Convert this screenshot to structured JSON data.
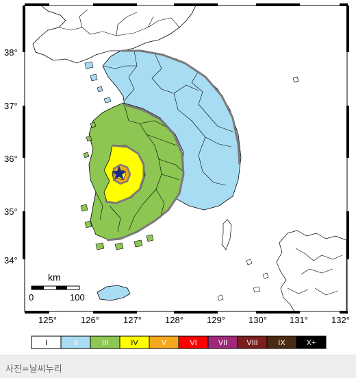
{
  "map": {
    "latitude_labels": [
      "38°",
      "37°",
      "36°",
      "35°",
      "34°"
    ],
    "longitude_labels": [
      "125°",
      "126°",
      "127°",
      "128°",
      "129°",
      "130°",
      "131°",
      "132°"
    ],
    "scale_bar": {
      "unit": "km",
      "start": "0",
      "end": "100"
    },
    "epicenter_icon": "star-icon",
    "colors": {
      "land": "#ffffff",
      "sea": "#ffffff",
      "intensity_II": "#a8dcf3",
      "intensity_III": "#8dc653",
      "intensity_IV": "#ffff00",
      "intensity_V": "#f4a81a",
      "epicenter": "#1a2a8c",
      "contour": "#7a7a7a"
    }
  },
  "legend": {
    "items": [
      {
        "label": "I",
        "color": "#ffffff",
        "text_color": "#000000"
      },
      {
        "label": "II",
        "color": "#a8dcf3",
        "text_color": "#ffffff"
      },
      {
        "label": "III",
        "color": "#8dc653",
        "text_color": "#ffffff"
      },
      {
        "label": "IV",
        "color": "#ffff00",
        "text_color": "#000000"
      },
      {
        "label": "V",
        "color": "#f4a81a",
        "text_color": "#ffffff"
      },
      {
        "label": "VI",
        "color": "#ff0000",
        "text_color": "#ffffff"
      },
      {
        "label": "VII",
        "color": "#a0287a",
        "text_color": "#ffffff"
      },
      {
        "label": "VIII",
        "color": "#7a1e1e",
        "text_color": "#ffffff"
      },
      {
        "label": "IX",
        "color": "#4a2a10",
        "text_color": "#ffffff"
      },
      {
        "label": "X+",
        "color": "#000000",
        "text_color": "#ffffff"
      }
    ]
  },
  "caption": {
    "text": "사진=날씨누리"
  }
}
